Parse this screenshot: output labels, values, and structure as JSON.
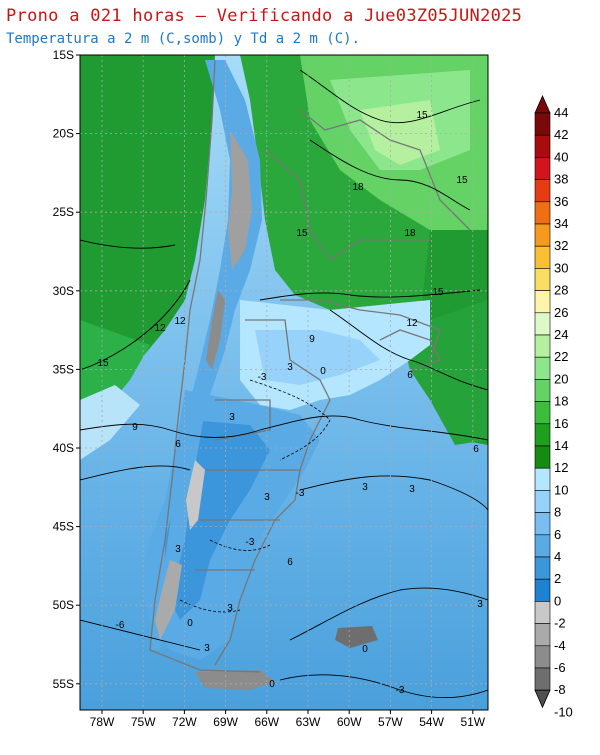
{
  "title": "Prono a 021 horas — Verificando a Jue03Z05JUN2025",
  "subtitle": "Temperatura a 2 m (C,somb) y Td a 2 m (C).",
  "map": {
    "lat_ticks": [
      "15S",
      "20S",
      "25S",
      "30S",
      "35S",
      "40S",
      "45S",
      "50S",
      "55S"
    ],
    "lon_ticks": [
      "78W",
      "75W",
      "72W",
      "69W",
      "66W",
      "63W",
      "60W",
      "57W",
      "54W",
      "51W"
    ],
    "grid": true,
    "contour_labels": [
      "15",
      "18",
      "15",
      "15",
      "18",
      "15",
      "12",
      "12",
      "12",
      "9",
      "15",
      "6",
      "3",
      "0",
      "3",
      "9",
      "6",
      "-3",
      "6",
      "3",
      "-3",
      "3",
      "3",
      "-3",
      "3",
      "6",
      "0",
      "-6",
      "3",
      "3",
      "0",
      "3",
      "0",
      "-3"
    ]
  },
  "colorbar": {
    "labels": [
      "44",
      "42",
      "40",
      "38",
      "36",
      "34",
      "32",
      "30",
      "28",
      "26",
      "24",
      "22",
      "20",
      "18",
      "16",
      "14",
      "12",
      "10",
      "8",
      "6",
      "4",
      "2",
      "0",
      "-2",
      "-4",
      "-6",
      "-8",
      "-10"
    ],
    "colors": [
      "#7a0a0a",
      "#a80c0c",
      "#d2141e",
      "#e63c14",
      "#f06e14",
      "#f59a1e",
      "#f8c032",
      "#fade64",
      "#fff5aa",
      "#dcfac8",
      "#b4f0a0",
      "#8ce68c",
      "#64d264",
      "#3cbe3c",
      "#1ea01e",
      "#148c14",
      "#b4e6ff",
      "#96d2fa",
      "#78bef0",
      "#5aaae6",
      "#3c96dc",
      "#1e82d2",
      "#c8c8c8",
      "#aaaaaa",
      "#8c8c8c",
      "#6e6e6e",
      "#505050"
    ]
  }
}
